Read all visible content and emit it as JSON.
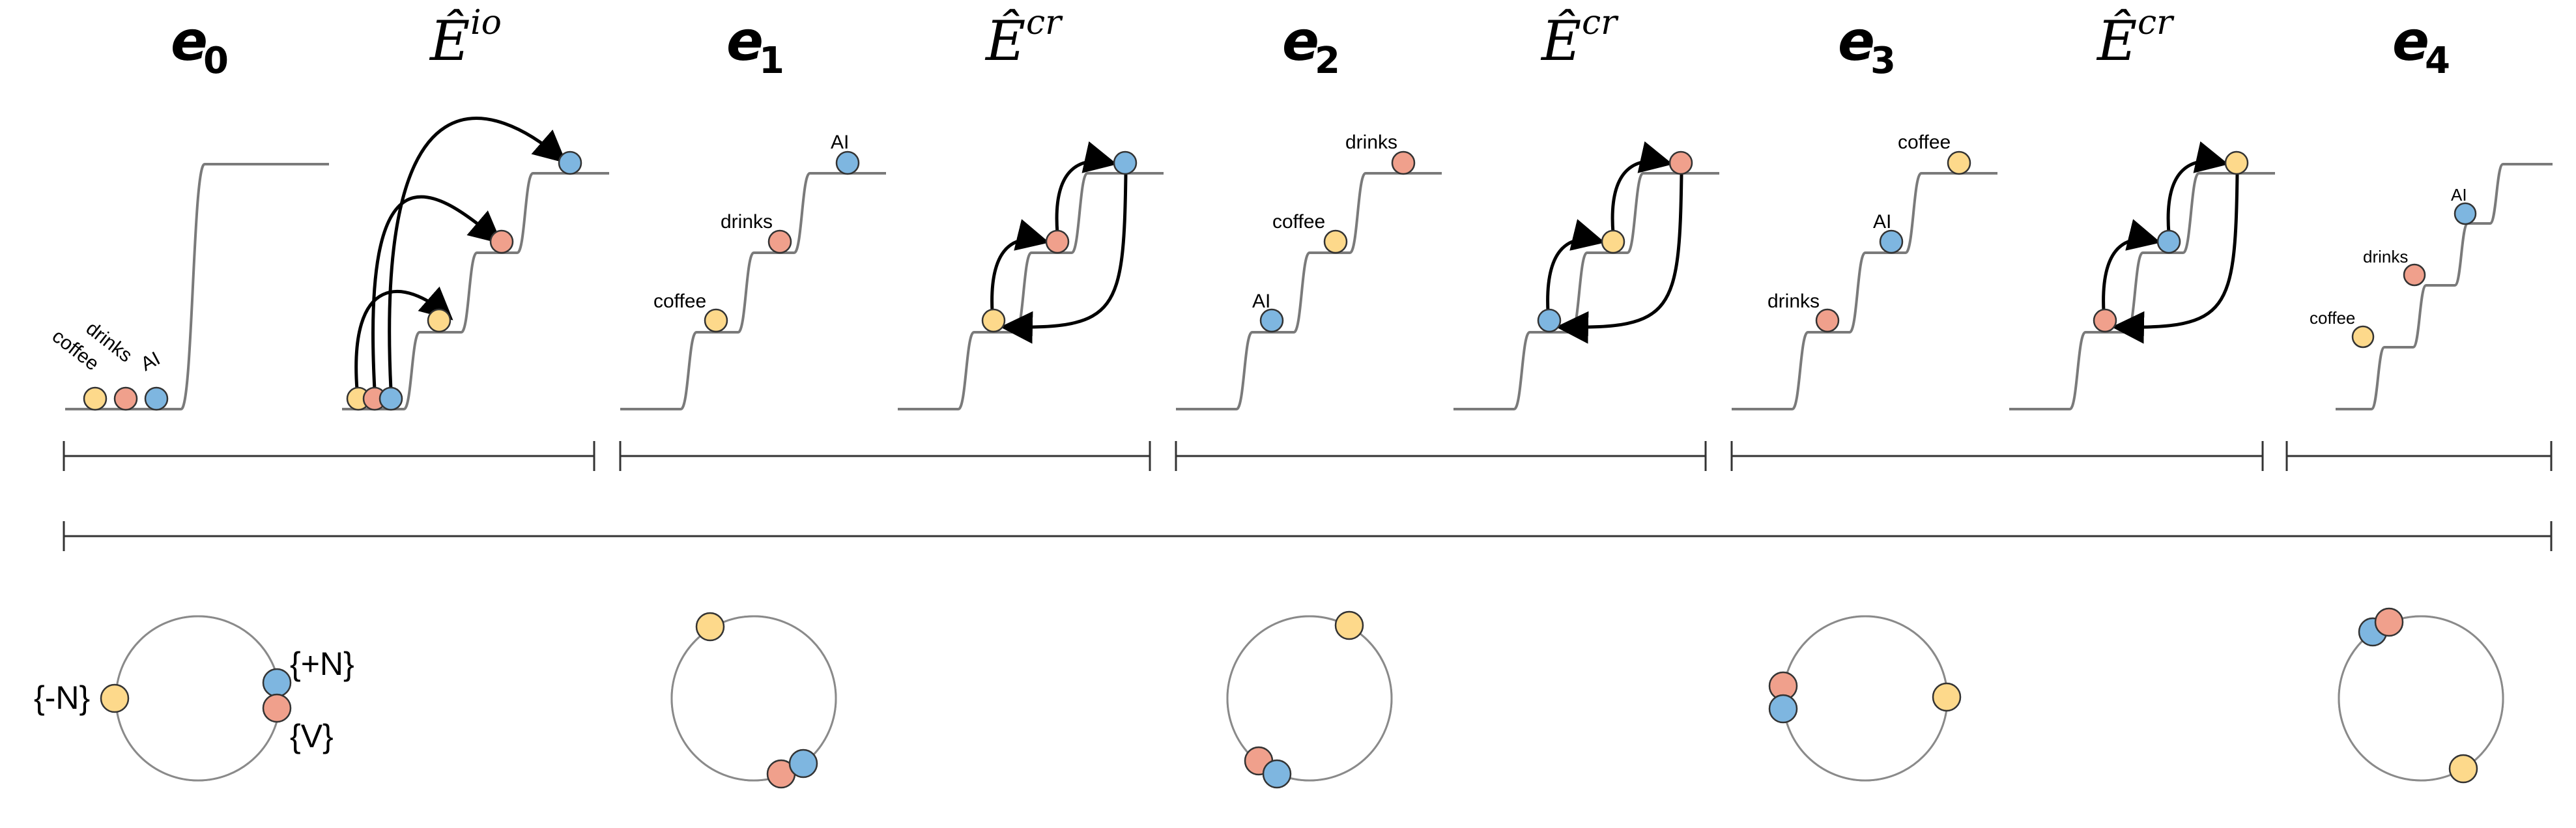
{
  "colors": {
    "coffee": "#fdd98b",
    "drinks": "#f0a08c",
    "AI": "#7eb6e0",
    "sector_warm": "#fcf3e3",
    "sector_cool": "#e2eef6",
    "stair": "#7a7a7a"
  },
  "panels": [
    {
      "id": "e0",
      "kind": "e",
      "main": "e",
      "sub": "0",
      "labels": {
        "coffee": "coffee",
        "drinks": "drinks",
        "AI": "AI"
      }
    },
    {
      "id": "Eio",
      "kind": "E",
      "main": "Ê",
      "sup": "io"
    },
    {
      "id": "e1",
      "kind": "e",
      "main": "e",
      "sub": "1",
      "labels": {
        "coffee": "coffee",
        "drinks": "drinks",
        "AI": "AI"
      }
    },
    {
      "id": "Ecr1",
      "kind": "E",
      "main": "Ê",
      "sup": "cr"
    },
    {
      "id": "e2",
      "kind": "e",
      "main": "e",
      "sub": "2",
      "labels": {
        "coffee": "coffee",
        "drinks": "drinks",
        "AI": "AI"
      }
    },
    {
      "id": "Ecr2",
      "kind": "E",
      "main": "Ê",
      "sup": "cr"
    },
    {
      "id": "e3",
      "kind": "e",
      "main": "e",
      "sub": "3",
      "labels": {
        "coffee": "coffee",
        "drinks": "drinks",
        "AI": "AI"
      }
    },
    {
      "id": "Ecr3",
      "kind": "E",
      "main": "Ê",
      "sup": "cr"
    },
    {
      "id": "e4",
      "kind": "e",
      "main": "e",
      "sub": "4",
      "labels": {
        "coffee": "coffee",
        "drinks": "drinks",
        "AI": "AI"
      }
    }
  ],
  "circle0_labels": {
    "neg_n": "{-N}",
    "pos_n": "{+N}",
    "v": "{V}"
  }
}
